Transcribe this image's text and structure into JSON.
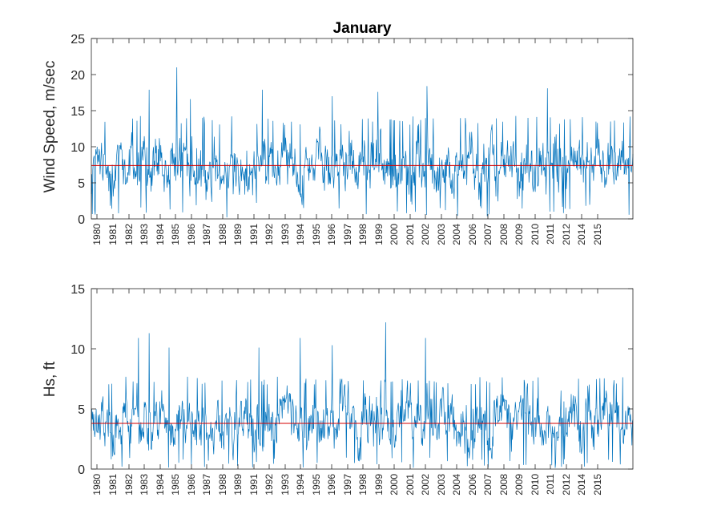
{
  "colors": {
    "series": "#0072BD",
    "mean_line": "#D40000",
    "axes": "#262626"
  },
  "chart_data": [
    {
      "type": "line",
      "title": "January",
      "xlabel": "",
      "ylabel": "Wind Speed, m/sec",
      "xlim": [
        1980,
        2015.5
      ],
      "ylim": [
        0,
        25
      ],
      "yticks": [
        0,
        5,
        10,
        15,
        20,
        25
      ],
      "xtick_labels": [
        "1980",
        "1981",
        "1982",
        "1983",
        "1984",
        "1985",
        "1986",
        "1987",
        "1988",
        "1989",
        "1991",
        "1992",
        "1993",
        "1994",
        "1995",
        "1996",
        "1997",
        "1998",
        "1999",
        "2000",
        "2001",
        "2002",
        "2003",
        "2004",
        "2006",
        "2007",
        "2008",
        "2009",
        "2010",
        "2011",
        "2012",
        "2014",
        "2015"
      ],
      "mean_line": 7.4,
      "series": [
        {
          "values_summary": {
            "typical_range": [
              2,
              13
            ],
            "max": 21.0,
            "min": 0.3,
            "points": 1116
          }
        }
      ],
      "peaks": [
        {
          "x": 1985.6,
          "y": 21.0
        },
        {
          "x": 1983.8,
          "y": 17.9
        },
        {
          "x": 1986.5,
          "y": 16.6
        },
        {
          "x": 1991.2,
          "y": 17.9
        },
        {
          "x": 1998.8,
          "y": 17.6
        },
        {
          "x": 2002.0,
          "y": 18.4
        },
        {
          "x": 2009.9,
          "y": 18.1
        },
        {
          "x": 1995.8,
          "y": 17.0
        }
      ]
    },
    {
      "type": "line",
      "title": "",
      "xlabel": "",
      "ylabel": "Hs, ft",
      "xlim": [
        1980,
        2015.5
      ],
      "ylim": [
        0,
        15
      ],
      "yticks": [
        0,
        5,
        10,
        15
      ],
      "xtick_labels": [
        "1980",
        "1981",
        "1982",
        "1983",
        "1984",
        "1985",
        "1986",
        "1987",
        "1988",
        "1989",
        "1991",
        "1992",
        "1993",
        "1994",
        "1995",
        "1996",
        "1997",
        "1998",
        "1999",
        "2000",
        "2001",
        "2002",
        "2003",
        "2004",
        "2006",
        "2007",
        "2008",
        "2009",
        "2010",
        "2011",
        "2012",
        "2014",
        "2015"
      ],
      "mean_line": 3.8,
      "series": [
        {
          "values_summary": {
            "typical_range": [
              1,
              7
            ],
            "max": 12.2,
            "min": 0.0,
            "points": 1116
          }
        }
      ],
      "peaks": [
        {
          "x": 1983.8,
          "y": 11.3
        },
        {
          "x": 1983.1,
          "y": 10.9
        },
        {
          "x": 1993.7,
          "y": 10.9
        },
        {
          "x": 1999.3,
          "y": 12.2
        },
        {
          "x": 2001.9,
          "y": 10.9
        },
        {
          "x": 1991.0,
          "y": 10.1
        },
        {
          "x": 1985.1,
          "y": 10.1
        },
        {
          "x": 1995.8,
          "y": 10.3
        }
      ]
    }
  ]
}
